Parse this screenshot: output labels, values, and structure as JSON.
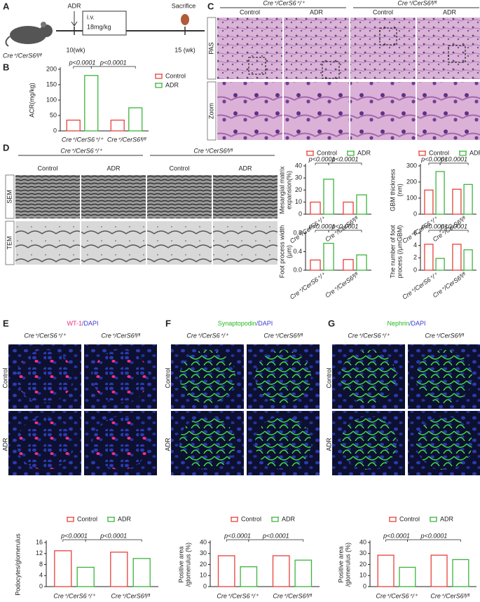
{
  "panel_labels": [
    "A",
    "B",
    "C",
    "D",
    "E",
    "F",
    "G"
  ],
  "panel_a": {
    "drug": "ADR",
    "dose": [
      "i.v.",
      "18mg/kg"
    ],
    "start": "10(wk)",
    "end": "15 (wk)",
    "endpoint": "Sacrifice",
    "mouse": "Cre⁺/CerS6ᶠˡ/ᶠˡ"
  },
  "panel_c": {
    "groups": [
      "Cre⁺/CerS6⁺/⁺",
      "Cre⁺/CerS6ᶠˡ/ᶠˡ"
    ],
    "columns": [
      "Control",
      "ADR",
      "Control",
      "ADR"
    ],
    "rows": [
      "PAS",
      "Zoom"
    ]
  },
  "panel_d": {
    "groups": [
      "Cre⁺/CerS6⁺/⁺",
      "Cre⁺/CerS6ᶠˡ/ᶠˡ"
    ],
    "columns": [
      "Control",
      "ADR",
      "Control",
      "ADR"
    ],
    "rows": [
      "SEM",
      "TEM"
    ]
  },
  "panel_e": {
    "stain": [
      "WT-1",
      "/DAPI"
    ],
    "stain_colors": [
      "#e8337a",
      "#3a3ad0"
    ],
    "groups": [
      "Cre⁺/CerS6⁺/⁺",
      "Cre⁺/CerS6ᶠˡ/ᶠˡ"
    ],
    "rows": [
      "Control",
      "ADR"
    ]
  },
  "panel_f": {
    "stain": [
      "Synaptopodin",
      "/DAPI"
    ],
    "stain_colors": [
      "#22b822",
      "#3a3ad0"
    ],
    "groups": [
      "Cre⁺/CerS6⁺/⁺",
      "Cre⁺/CerS6ᶠˡ/ᶠˡ"
    ],
    "rows": [
      "Control",
      "ADR"
    ]
  },
  "panel_g": {
    "stain": [
      "Nephrin",
      "/DAPI"
    ],
    "stain_colors": [
      "#22b822",
      "#3a3ad0"
    ],
    "groups": [
      "Cre⁺/CerS6⁺/⁺",
      "Cre⁺/CerS6ᶠˡ/ᶠˡ"
    ],
    "rows": [
      "Control",
      "ADR"
    ]
  },
  "chart_data": [
    {
      "type": "bar",
      "ylabel": [
        "ACR(mg/kg)"
      ],
      "categories": [
        "Cre⁺/CerS6⁺/⁺",
        "Cre⁺/CerS6ᶠˡ/ᶠˡ"
      ],
      "series": [
        {
          "name": "Control",
          "color": "#e8413c",
          "values": [
            35,
            35
          ]
        },
        {
          "name": "ADR",
          "color": "#3cb43c",
          "values": [
            180,
            75
          ]
        }
      ],
      "ylim": [
        0,
        200
      ],
      "yticks": [
        0,
        50,
        100,
        150,
        200
      ],
      "annotations": [
        "p<0.0001",
        "p<0.0001"
      ],
      "legend": "right"
    },
    {
      "type": "bar",
      "ylabel": [
        "Mesangial matrix",
        "expansion(%)"
      ],
      "categories": [
        "Cre⁺/CerS6⁺/⁺",
        "Cre⁺/CerS6ᶠˡ/ᶠˡ"
      ],
      "series": [
        {
          "name": "Control",
          "color": "#e8413c",
          "values": [
            10,
            10
          ]
        },
        {
          "name": "ADR",
          "color": "#3cb43c",
          "values": [
            29,
            16
          ]
        }
      ],
      "ylim": [
        0,
        40
      ],
      "yticks": [
        0,
        10,
        20,
        30,
        40
      ],
      "annotations": [
        "p<0.0001",
        "p<0.0001"
      ],
      "legend": "top"
    },
    {
      "type": "bar",
      "ylabel": [
        "GBM thickness",
        "(nm)"
      ],
      "categories": [
        "Cre⁺/CerS6⁺/⁺",
        "Cre⁺/CerS6ᶠˡ/ᶠˡ"
      ],
      "series": [
        {
          "name": "Control",
          "color": "#e8413c",
          "values": [
            150,
            155
          ]
        },
        {
          "name": "ADR",
          "color": "#3cb43c",
          "values": [
            265,
            185
          ]
        }
      ],
      "ylim": [
        0,
        300
      ],
      "yticks": [
        0,
        100,
        200,
        300
      ],
      "annotations": [
        "p<0.0001",
        "p<0.0001"
      ],
      "legend": "top"
    },
    {
      "type": "bar",
      "ylabel": [
        "Foot process width",
        "(μm)"
      ],
      "categories": [
        "Cre⁺/CerS6⁺/⁺",
        "Cre⁺/CerS6ᶠˡ/ᶠˡ"
      ],
      "series": [
        {
          "name": "Control",
          "color": "#e8413c",
          "values": [
            0.22,
            0.23
          ]
        },
        {
          "name": "ADR",
          "color": "#3cb43c",
          "values": [
            0.58,
            0.33
          ]
        }
      ],
      "ylim": [
        0,
        0.8
      ],
      "yticks": [
        {
          "value": 0,
          "label": "0.0"
        },
        0.4,
        0.8
      ],
      "annotations": [
        "p<0.0001",
        "p<0.0001"
      ],
      "legend": "none"
    },
    {
      "type": "bar",
      "ylabel": [
        "The number of foot",
        "process (/μmGBM)"
      ],
      "categories": [
        "Cre⁺/CerS6⁺/⁺",
        "Cre⁺/CerS6ᶠˡ/ᶠˡ"
      ],
      "series": [
        {
          "name": "Control",
          "color": "#e8413c",
          "values": [
            4.2,
            4.2
          ]
        },
        {
          "name": "ADR",
          "color": "#3cb43c",
          "values": [
            1.9,
            3.3
          ]
        }
      ],
      "ylim": [
        0,
        6
      ],
      "yticks": [
        0,
        2,
        4,
        6
      ],
      "annotations": [
        "p<0.0001",
        "p<0.0001"
      ],
      "legend": "none"
    },
    {
      "type": "bar",
      "ylabel": [
        "Podocytes/glomerulus"
      ],
      "categories": [
        "Cre⁺/CerS6⁺/⁺",
        "Cre⁺/CerS6ᶠˡ/ᶠˡ"
      ],
      "series": [
        {
          "name": "Control",
          "color": "#e8413c",
          "values": [
            13,
            12.5
          ]
        },
        {
          "name": "ADR",
          "color": "#3cb43c",
          "values": [
            7,
            10.2
          ]
        }
      ],
      "ylim": [
        0,
        16
      ],
      "yticks": [
        0,
        4,
        8,
        12,
        16
      ],
      "annotations": [
        "p<0.0001",
        "p<0.0001"
      ],
      "legend": "top"
    },
    {
      "type": "bar",
      "ylabel": [
        "Positive area",
        "/glomerulus (%)"
      ],
      "categories": [
        "Cre⁺/CerS6⁺/⁺",
        "Cre⁺/CerS6ᶠˡ/ᶠˡ"
      ],
      "series": [
        {
          "name": "Control",
          "color": "#e8413c",
          "values": [
            28,
            28
          ]
        },
        {
          "name": "ADR",
          "color": "#3cb43c",
          "values": [
            18,
            24
          ]
        }
      ],
      "ylim": [
        0,
        40
      ],
      "yticks": [
        0,
        10,
        20,
        30,
        40
      ],
      "annotations": [
        "p<0.0001",
        "p<0.0001"
      ],
      "legend": "top"
    },
    {
      "type": "bar",
      "ylabel": [
        "Positive area",
        "/glomerulus (%)"
      ],
      "categories": [
        "Cre⁺/CerS6⁺/⁺",
        "Cre⁺/CerS6ᶠˡ/ᶠˡ"
      ],
      "series": [
        {
          "name": "Control",
          "color": "#e8413c",
          "values": [
            28.5,
            28.5
          ]
        },
        {
          "name": "ADR",
          "color": "#3cb43c",
          "values": [
            17.5,
            24.5
          ]
        }
      ],
      "ylim": [
        0,
        40
      ],
      "yticks": [
        0,
        10,
        20,
        30,
        40
      ],
      "annotations": [
        "p<0.0001",
        "p<0.0001"
      ],
      "legend": "top"
    }
  ]
}
